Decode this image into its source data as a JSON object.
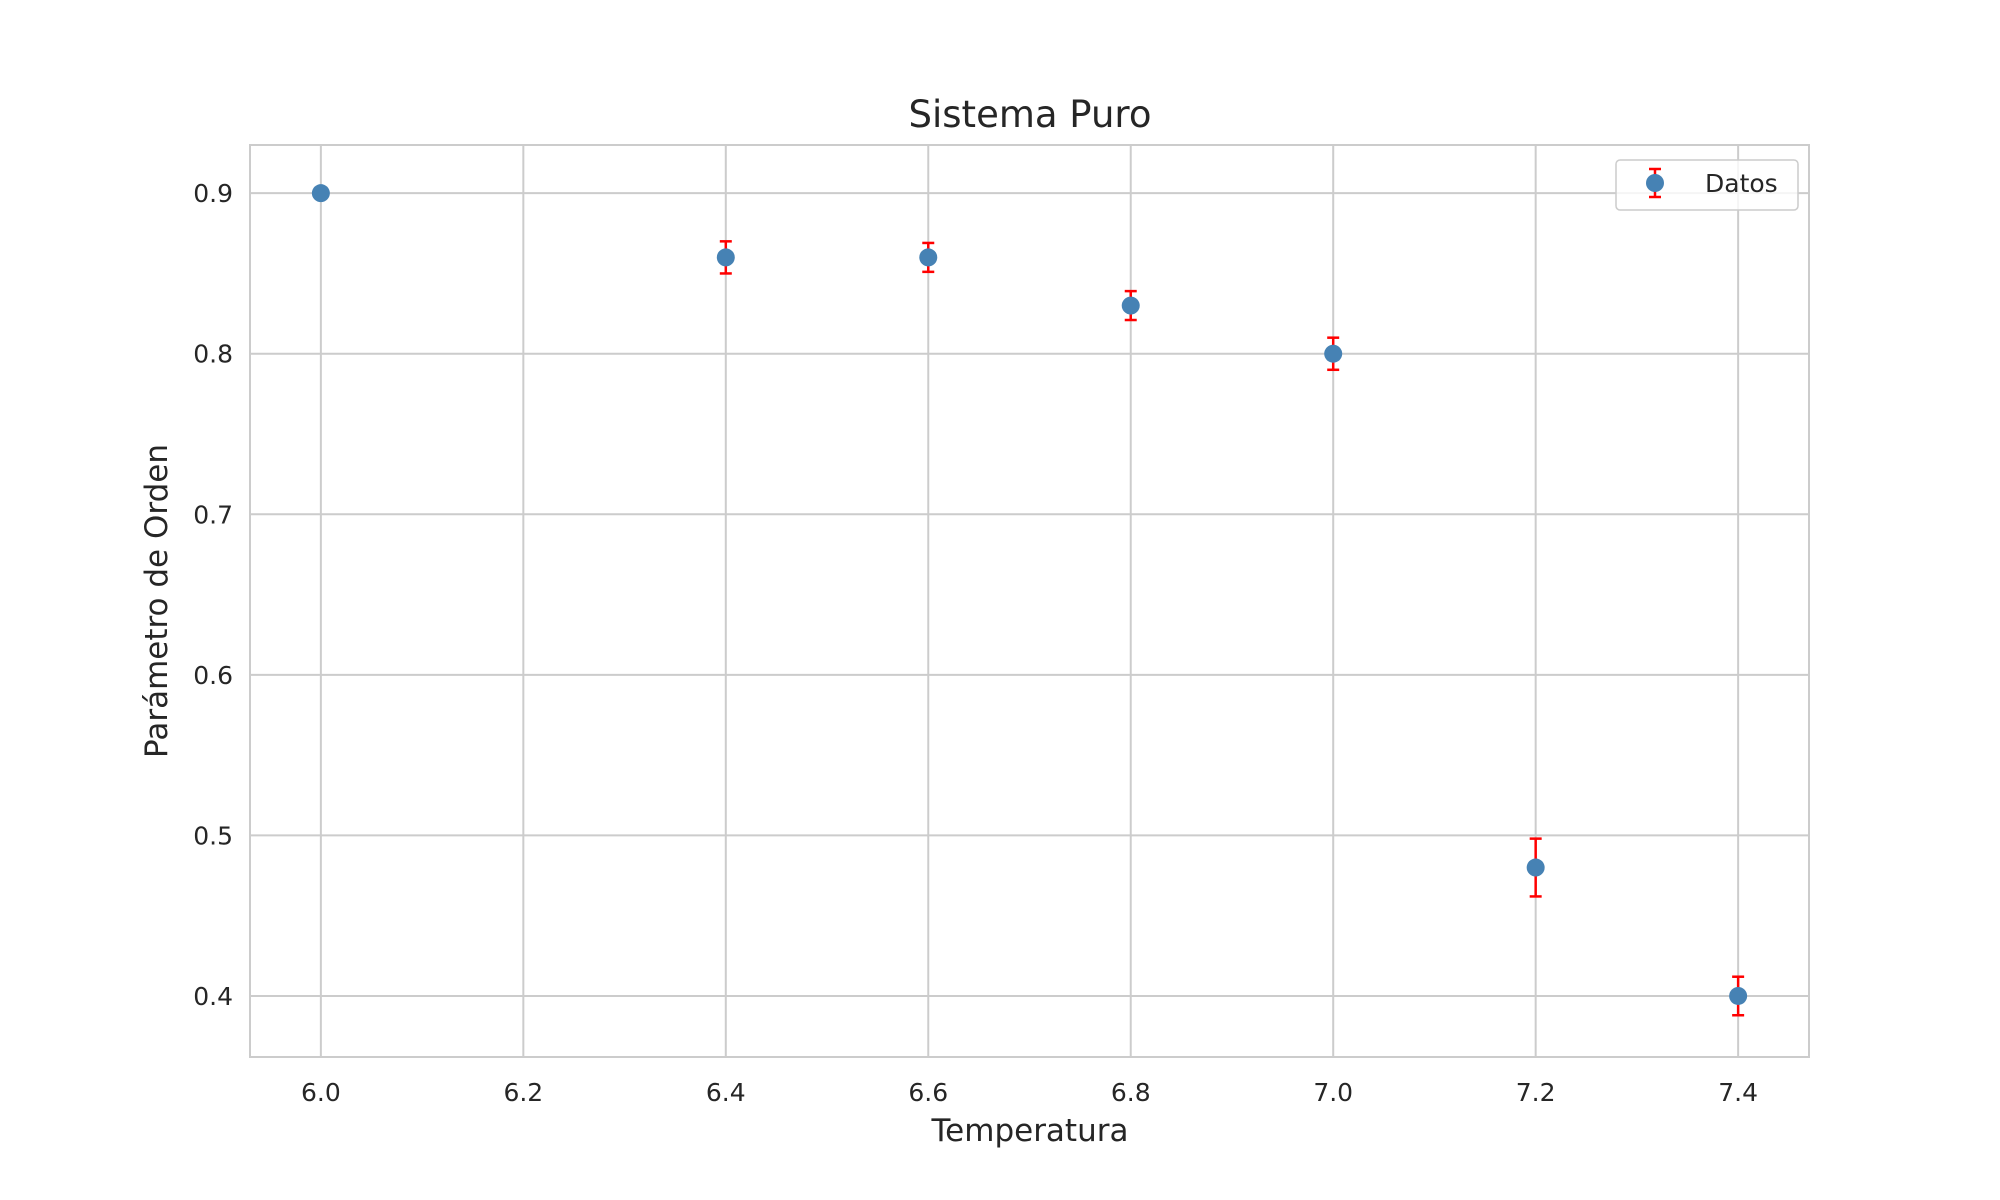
{
  "chart_data": {
    "type": "scatter",
    "title": "Sistema Puro",
    "xlabel": "Temperatura",
    "ylabel": "Parámetro de Orden",
    "xlim": [
      5.93,
      7.47
    ],
    "ylim": [
      0.362,
      0.93
    ],
    "xticks": [
      "6.0",
      "6.2",
      "6.4",
      "6.6",
      "6.8",
      "7.0",
      "7.2",
      "7.4"
    ],
    "yticks": [
      "0.4",
      "0.5",
      "0.6",
      "0.7",
      "0.8",
      "0.9"
    ],
    "grid": true,
    "legend_position": "top-right",
    "series": [
      {
        "name": "Datos",
        "x": [
          6.0,
          6.4,
          6.6,
          6.8,
          7.0,
          7.2,
          7.4
        ],
        "y": [
          0.9,
          0.86,
          0.86,
          0.83,
          0.8,
          0.48,
          0.4
        ],
        "yerr": [
          0.003,
          0.01,
          0.009,
          0.009,
          0.01,
          0.018,
          0.012
        ],
        "marker_color": "#4682b4",
        "errorbar_color": "#ff0000"
      }
    ]
  }
}
